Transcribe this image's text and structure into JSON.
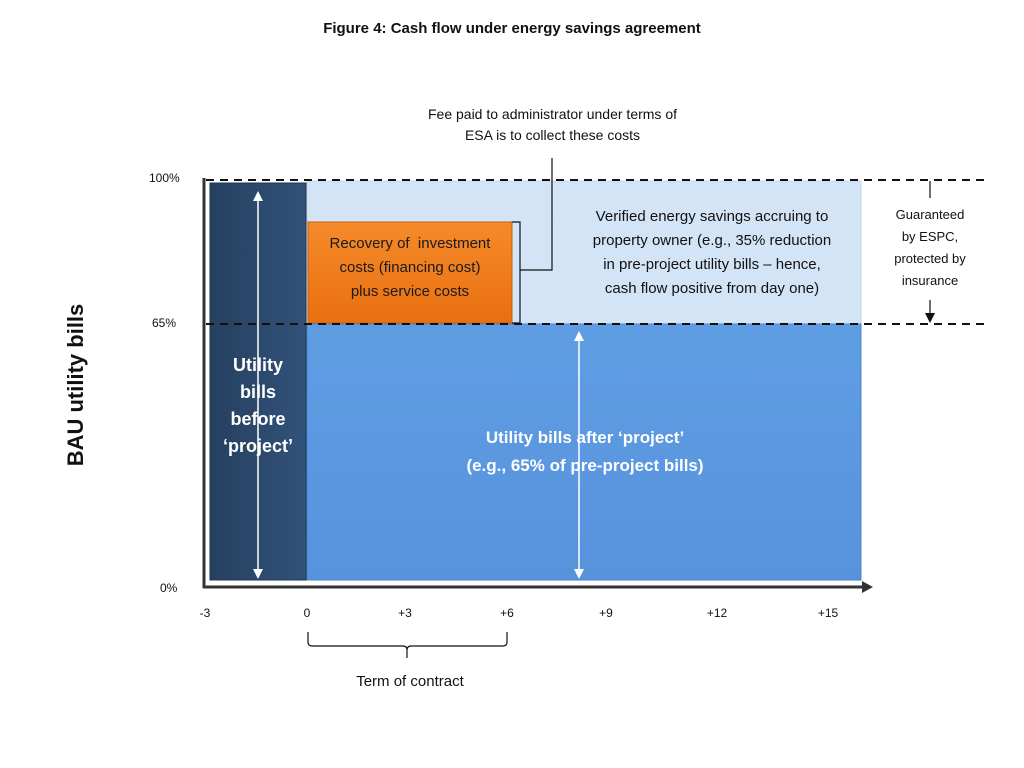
{
  "figure_title": "Figure 4: Cash flow under energy savings agreement",
  "fee_note": {
    "line1": "Fee paid to administrator under terms of",
    "line2": "ESA is to collect these costs"
  },
  "y_axis": {
    "label": "BAU utility bills",
    "ticks": [
      "100%",
      "65%",
      "0%"
    ]
  },
  "x_axis": {
    "ticks": [
      "-3",
      "0",
      "+3",
      "+6",
      "+9",
      "+12",
      "+15"
    ]
  },
  "before_block": {
    "lines": [
      "Utility",
      "bills",
      "before",
      "‘project’"
    ],
    "color": "#2e4a6e"
  },
  "recovery_block": {
    "lines": [
      "Recovery of  investment",
      "costs (financing cost)",
      "plus service costs"
    ],
    "color": "#f07b1a"
  },
  "savings_block": {
    "lines": [
      "Verified energy savings accruing to",
      "property owner (e.g., 35% reduction",
      "in pre-project utility bills – hence,",
      "cash flow positive from day one)"
    ],
    "color": "#d4e4f7"
  },
  "after_block": {
    "lines": [
      "Utility bills after ‘project’",
      "(e.g., 65% of pre-project bills)"
    ],
    "color": "#5b9ae0"
  },
  "guarantee_note": {
    "lines": [
      "Guaranteed",
      "by ESPC,",
      "protected by",
      "insurance"
    ]
  },
  "term_label": "Term of contract"
}
